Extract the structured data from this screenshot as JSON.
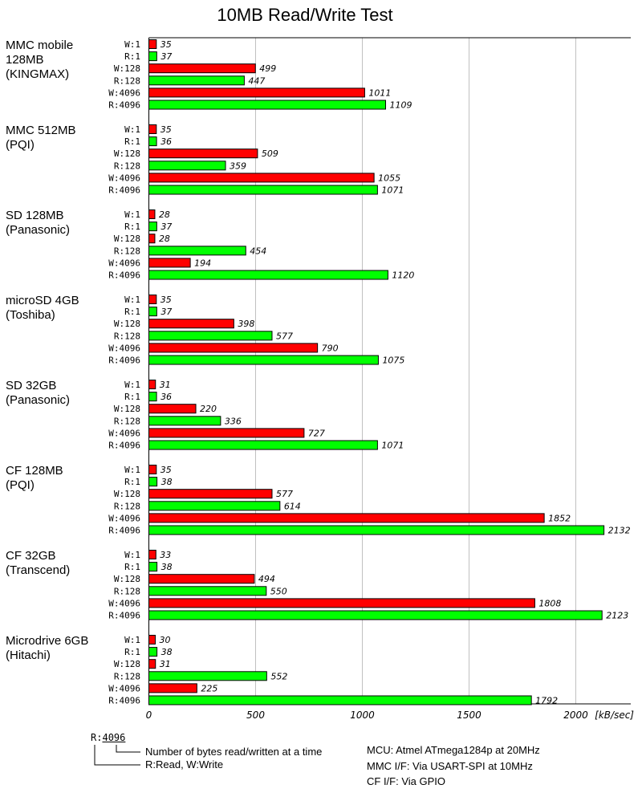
{
  "chart_data": {
    "type": "bar",
    "orientation": "horizontal",
    "title": "10MB Read/Write Test",
    "xlabel": "[kB/sec]",
    "xlim": [
      0,
      2250
    ],
    "xticks": [
      0,
      500,
      1000,
      1500,
      2000
    ],
    "grid": true,
    "row_labels": [
      "W:1",
      "R:1",
      "W:128",
      "R:128",
      "W:4096",
      "R:4096"
    ],
    "colors": {
      "write": "#ff0000",
      "read": "#00ff00"
    },
    "groups": [
      {
        "name": [
          "MMC mobile",
          "128MB",
          "(KINGMAX)"
        ],
        "values": [
          35,
          37,
          499,
          447,
          1011,
          1109
        ]
      },
      {
        "name": [
          "MMC 512MB",
          "(PQI)"
        ],
        "values": [
          35,
          36,
          509,
          359,
          1055,
          1071
        ]
      },
      {
        "name": [
          "SD 128MB",
          "(Panasonic)"
        ],
        "values": [
          28,
          37,
          28,
          454,
          194,
          1120
        ]
      },
      {
        "name": [
          "microSD 4GB",
          "(Toshiba)"
        ],
        "values": [
          35,
          37,
          398,
          577,
          790,
          1075
        ]
      },
      {
        "name": [
          "SD 32GB",
          "(Panasonic)"
        ],
        "values": [
          31,
          36,
          220,
          336,
          727,
          1071
        ]
      },
      {
        "name": [
          "CF 128MB",
          "(PQI)"
        ],
        "values": [
          35,
          38,
          577,
          614,
          1852,
          2132
        ]
      },
      {
        "name": [
          "CF 32GB",
          "(Transcend)"
        ],
        "values": [
          33,
          38,
          494,
          550,
          1808,
          2123
        ]
      },
      {
        "name": [
          "Microdrive 6GB",
          "(Hitachi)"
        ],
        "values": [
          30,
          38,
          31,
          552,
          225,
          1792
        ]
      }
    ]
  },
  "legend": {
    "example_prefix": "R",
    "example_sep": ":",
    "example_size": "4096",
    "size_desc": "Number of bytes read/written at a time",
    "rw_desc": "R:Read, W:Write"
  },
  "notes": [
    "MCU: Atmel ATmega1284p at 20MHz",
    "MMC I/F: Via USART-SPI at 10MHz",
    "CF I/F: Via GPIO"
  ]
}
